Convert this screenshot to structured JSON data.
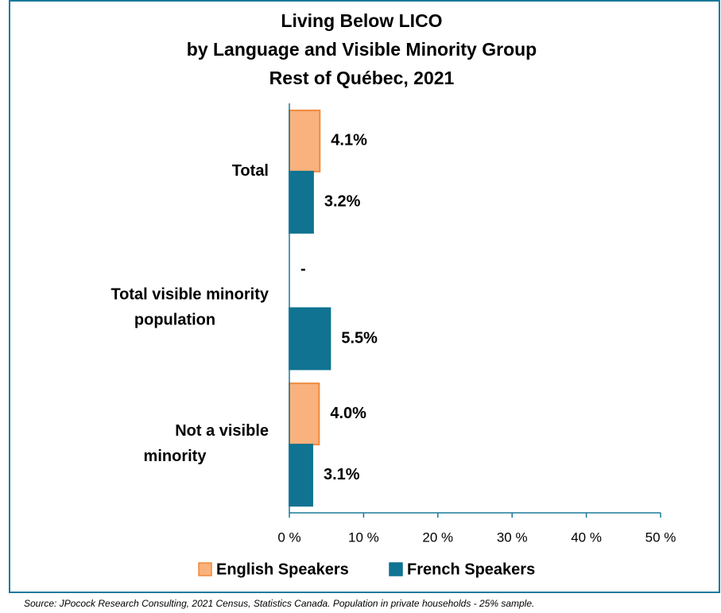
{
  "chart_data": {
    "type": "hbar",
    "title": [
      "Living Below LICO",
      "by Language and Visible Minority Group",
      "Rest of Québec, 2021"
    ],
    "categories": [
      "Total",
      "Total visible minority population",
      "Not a visible minority"
    ],
    "series": [
      {
        "name": "English Speakers",
        "color": "#F9B27D",
        "values": [
          4.1,
          null,
          4.0
        ],
        "value_labels": [
          "4.1%",
          "-",
          "4.0%"
        ]
      },
      {
        "name": "French Speakers",
        "color": "#0F7391",
        "values": [
          3.2,
          5.5,
          3.1
        ],
        "value_labels": [
          "3.2%",
          "5.5%",
          "3.1%"
        ]
      }
    ],
    "xlim": [
      0,
      50
    ],
    "xticks": [
      {
        "value": 0,
        "label": "0 %"
      },
      {
        "value": 10,
        "label": "10 %"
      },
      {
        "value": 20,
        "label": "20 %"
      },
      {
        "value": 30,
        "label": "30 %"
      },
      {
        "value": 40,
        "label": "40 %"
      },
      {
        "value": 50,
        "label": "50 %"
      }
    ],
    "legend": "bottom",
    "source": "Source: JPocock Research Consulting, 2021 Census, Statistics Canada. Population in private households - 25% sample."
  }
}
